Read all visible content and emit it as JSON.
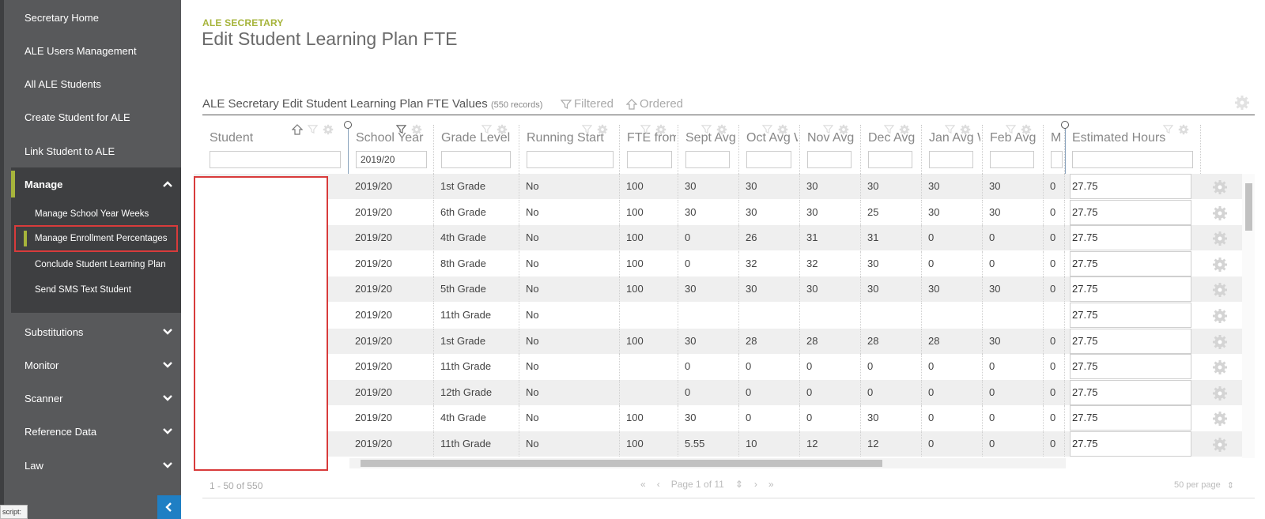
{
  "sidebar": {
    "items_top": [
      {
        "label": "Secretary Home"
      },
      {
        "label": "ALE Users Management"
      },
      {
        "label": "All ALE Students"
      },
      {
        "label": "Create Student for ALE"
      },
      {
        "label": "Link Student to ALE"
      }
    ],
    "manage": {
      "label": "Manage",
      "sub_items": [
        {
          "label": "Manage School Year Weeks"
        },
        {
          "label": "Manage Enrollment Percentages"
        },
        {
          "label": "Conclude Student Learning Plan"
        },
        {
          "label": "Send SMS Text Student"
        }
      ]
    },
    "items_bottom": [
      {
        "label": "Substitutions"
      },
      {
        "label": "Monitor"
      },
      {
        "label": "Scanner"
      },
      {
        "label": "Reference Data"
      },
      {
        "label": "Law"
      }
    ],
    "tooltip_fragment": "script:"
  },
  "header": {
    "eyebrow": "ALE SECRETARY",
    "title": "Edit Student Learning Plan FTE"
  },
  "panel": {
    "title": "ALE Secretary Edit Student Learning Plan FTE Values",
    "record_count": "(550 records)",
    "filtered_label": "Filtered",
    "ordered_label": "Ordered"
  },
  "grid": {
    "columns": [
      {
        "label": "Student",
        "filter_value": ""
      },
      {
        "label": "School Year",
        "filter_value": "2019/20"
      },
      {
        "label": "Grade Level",
        "filter_value": ""
      },
      {
        "label": "Running Start",
        "filter_value": ""
      },
      {
        "label": "FTE from",
        "filter_value": ""
      },
      {
        "label": "Sept Avg",
        "filter_value": ""
      },
      {
        "label": "Oct Avg W",
        "filter_value": ""
      },
      {
        "label": "Nov Avg",
        "filter_value": ""
      },
      {
        "label": "Dec Avg",
        "filter_value": ""
      },
      {
        "label": "Jan Avg W",
        "filter_value": ""
      },
      {
        "label": "Feb Avg",
        "filter_value": ""
      },
      {
        "label": "M",
        "filter_value": ""
      },
      {
        "label": "Estimated Hours",
        "filter_value": ""
      }
    ],
    "rows": [
      {
        "year": "2019/20",
        "grade": "1st Grade",
        "rs": "No",
        "fte": "100",
        "sep": "30",
        "oct": "30",
        "nov": "30",
        "dec": "30",
        "jan": "30",
        "feb": "30",
        "m": "0",
        "hours": "27.75"
      },
      {
        "year": "2019/20",
        "grade": "6th Grade",
        "rs": "No",
        "fte": "100",
        "sep": "30",
        "oct": "30",
        "nov": "30",
        "dec": "25",
        "jan": "30",
        "feb": "30",
        "m": "0",
        "hours": "27.75"
      },
      {
        "year": "2019/20",
        "grade": "4th Grade",
        "rs": "No",
        "fte": "100",
        "sep": "0",
        "oct": "26",
        "nov": "31",
        "dec": "31",
        "jan": "0",
        "feb": "0",
        "m": "0",
        "hours": "27.75"
      },
      {
        "year": "2019/20",
        "grade": "8th Grade",
        "rs": "No",
        "fte": "100",
        "sep": "0",
        "oct": "32",
        "nov": "32",
        "dec": "30",
        "jan": "0",
        "feb": "0",
        "m": "0",
        "hours": "27.75"
      },
      {
        "year": "2019/20",
        "grade": "5th Grade",
        "rs": "No",
        "fte": "100",
        "sep": "30",
        "oct": "30",
        "nov": "30",
        "dec": "30",
        "jan": "30",
        "feb": "30",
        "m": "0",
        "hours": "27.75"
      },
      {
        "year": "2019/20",
        "grade": "11th Grade",
        "rs": "No",
        "fte": "",
        "sep": "",
        "oct": "",
        "nov": "",
        "dec": "",
        "jan": "",
        "feb": "",
        "m": "",
        "hours": "27.75"
      },
      {
        "year": "2019/20",
        "grade": "1st Grade",
        "rs": "No",
        "fte": "100",
        "sep": "30",
        "oct": "28",
        "nov": "28",
        "dec": "28",
        "jan": "28",
        "feb": "30",
        "m": "0",
        "hours": "27.75"
      },
      {
        "year": "2019/20",
        "grade": "11th Grade",
        "rs": "No",
        "fte": "",
        "sep": "0",
        "oct": "0",
        "nov": "0",
        "dec": "0",
        "jan": "0",
        "feb": "0",
        "m": "0",
        "hours": "27.75"
      },
      {
        "year": "2019/20",
        "grade": "12th Grade",
        "rs": "No",
        "fte": "",
        "sep": "0",
        "oct": "0",
        "nov": "0",
        "dec": "0",
        "jan": "0",
        "feb": "0",
        "m": "0",
        "hours": "27.75"
      },
      {
        "year": "2019/20",
        "grade": "4th Grade",
        "rs": "No",
        "fte": "100",
        "sep": "30",
        "oct": "0",
        "nov": "0",
        "dec": "30",
        "jan": "0",
        "feb": "0",
        "m": "0",
        "hours": "27.75"
      },
      {
        "year": "2019/20",
        "grade": "11th Grade",
        "rs": "No",
        "fte": "100",
        "sep": "5.55",
        "oct": "10",
        "nov": "12",
        "dec": "12",
        "jan": "0",
        "feb": "0",
        "m": "0",
        "hours": "27.75"
      }
    ]
  },
  "footer": {
    "range": "1 - 50 of 550",
    "page_label": "Page 1 of 11",
    "per_page": "50 per page"
  },
  "colors": {
    "accent_green": "#a6b43b",
    "sidebar_bg": "#58595b",
    "highlight_red": "#d83b3b",
    "collapse_blue": "#1f7fc4"
  }
}
